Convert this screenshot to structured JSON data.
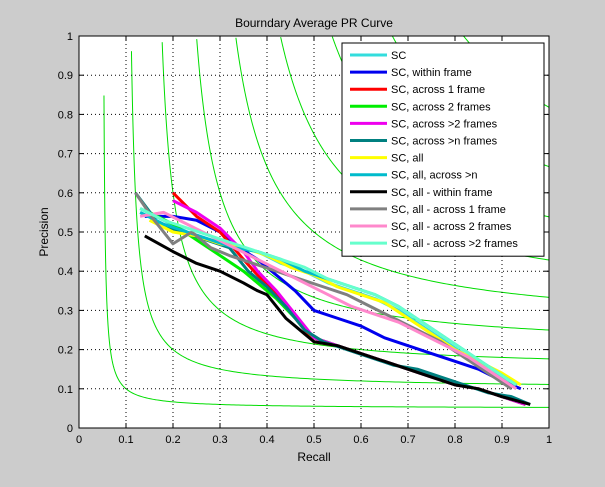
{
  "chart_data": {
    "type": "line",
    "title": "Bourndary Average PR Curve",
    "xlabel": "Recall",
    "ylabel": "Precision",
    "xlim": [
      0,
      1
    ],
    "ylim": [
      0,
      1
    ],
    "xticks": [
      "0",
      "0.1",
      "0.2",
      "0.3",
      "0.4",
      "0.5",
      "0.6",
      "0.7",
      "0.8",
      "0.9",
      "1"
    ],
    "yticks": [
      "0",
      "0.1",
      "0.2",
      "0.3",
      "0.4",
      "0.5",
      "0.6",
      "0.7",
      "0.8",
      "0.9",
      "1"
    ],
    "grid": "dotted",
    "legend_position": "top-right",
    "f_measure_isolines": {
      "color": "#00dd00",
      "values": [
        0.1,
        0.2,
        0.3,
        0.4,
        0.5,
        0.6,
        0.7,
        0.8,
        0.9
      ]
    },
    "series": [
      {
        "name": "SC",
        "color": "#33dddd",
        "x": [
          0.13,
          0.18,
          0.23,
          0.28,
          0.33,
          0.38,
          0.43,
          0.48,
          0.53,
          0.58,
          0.63,
          0.68,
          0.73,
          0.78,
          0.83,
          0.88,
          0.93
        ],
        "y": [
          0.56,
          0.53,
          0.5,
          0.48,
          0.46,
          0.45,
          0.42,
          0.4,
          0.37,
          0.35,
          0.33,
          0.3,
          0.26,
          0.22,
          0.18,
          0.14,
          0.11
        ]
      },
      {
        "name": "SC, within frame",
        "color": "#0000ee",
        "x": [
          0.14,
          0.2,
          0.25,
          0.3,
          0.34,
          0.38,
          0.42,
          0.46,
          0.5,
          0.55,
          0.6,
          0.65,
          0.7,
          0.75,
          0.8,
          0.85,
          0.9,
          0.94
        ],
        "y": [
          0.54,
          0.54,
          0.53,
          0.5,
          0.46,
          0.43,
          0.39,
          0.35,
          0.3,
          0.28,
          0.26,
          0.23,
          0.21,
          0.19,
          0.17,
          0.15,
          0.12,
          0.1
        ]
      },
      {
        "name": "SC, across 1 frame",
        "color": "#ff0000",
        "x": [
          0.2,
          0.25,
          0.3,
          0.35,
          0.38,
          0.42,
          0.46,
          0.5,
          0.55,
          0.6,
          0.65,
          0.7,
          0.75,
          0.8,
          0.85,
          0.9,
          0.95
        ],
        "y": [
          0.6,
          0.54,
          0.5,
          0.43,
          0.39,
          0.34,
          0.28,
          0.22,
          0.21,
          0.19,
          0.17,
          0.15,
          0.13,
          0.11,
          0.1,
          0.08,
          0.06
        ]
      },
      {
        "name": "SC, across 2 frames",
        "color": "#00ee00",
        "x": [
          0.15,
          0.2,
          0.25,
          0.3,
          0.35,
          0.38,
          0.42,
          0.46,
          0.5,
          0.55,
          0.6,
          0.65,
          0.7,
          0.75,
          0.8,
          0.85,
          0.9,
          0.95
        ],
        "y": [
          0.55,
          0.52,
          0.48,
          0.44,
          0.4,
          0.37,
          0.33,
          0.28,
          0.23,
          0.21,
          0.19,
          0.17,
          0.15,
          0.13,
          0.11,
          0.1,
          0.08,
          0.06
        ]
      },
      {
        "name": "SC, across >2 frames",
        "color": "#ee00ee",
        "x": [
          0.2,
          0.25,
          0.3,
          0.35,
          0.38,
          0.42,
          0.46,
          0.5,
          0.55,
          0.6,
          0.65,
          0.7,
          0.75,
          0.8,
          0.85,
          0.9,
          0.95
        ],
        "y": [
          0.58,
          0.55,
          0.51,
          0.45,
          0.4,
          0.35,
          0.29,
          0.23,
          0.21,
          0.19,
          0.17,
          0.15,
          0.13,
          0.11,
          0.1,
          0.08,
          0.06
        ]
      },
      {
        "name": "SC, across >n frames",
        "color": "#008080",
        "x": [
          0.12,
          0.17,
          0.22,
          0.27,
          0.32,
          0.36,
          0.4,
          0.44,
          0.48,
          0.52,
          0.57,
          0.62,
          0.67,
          0.72,
          0.77,
          0.82,
          0.87,
          0.92,
          0.96
        ],
        "y": [
          0.6,
          0.52,
          0.5,
          0.48,
          0.46,
          0.4,
          0.36,
          0.31,
          0.25,
          0.22,
          0.2,
          0.18,
          0.16,
          0.15,
          0.13,
          0.11,
          0.09,
          0.08,
          0.06
        ]
      },
      {
        "name": "SC, all",
        "color": "#ffff00",
        "x": [
          0.15,
          0.2,
          0.25,
          0.3,
          0.35,
          0.4,
          0.45,
          0.5,
          0.55,
          0.6,
          0.65,
          0.7,
          0.75,
          0.8,
          0.85,
          0.9,
          0.94
        ],
        "y": [
          0.53,
          0.5,
          0.49,
          0.47,
          0.46,
          0.44,
          0.41,
          0.39,
          0.36,
          0.34,
          0.32,
          0.28,
          0.24,
          0.2,
          0.17,
          0.14,
          0.11
        ]
      },
      {
        "name": "SC, all, across >n",
        "color": "#00bbcc",
        "x": [
          0.13,
          0.18,
          0.23,
          0.28,
          0.33,
          0.38,
          0.43,
          0.48,
          0.53,
          0.58,
          0.63,
          0.68,
          0.73,
          0.78,
          0.83,
          0.88,
          0.93
        ],
        "y": [
          0.55,
          0.52,
          0.5,
          0.48,
          0.46,
          0.45,
          0.43,
          0.4,
          0.38,
          0.36,
          0.34,
          0.31,
          0.27,
          0.23,
          0.19,
          0.15,
          0.11
        ]
      },
      {
        "name": "SC, all - within frame",
        "color": "#000000",
        "x": [
          0.14,
          0.2,
          0.25,
          0.3,
          0.35,
          0.38,
          0.4,
          0.42,
          0.44,
          0.46,
          0.48,
          0.5,
          0.55,
          0.6,
          0.65,
          0.7,
          0.75,
          0.8,
          0.85,
          0.9,
          0.96
        ],
        "y": [
          0.49,
          0.45,
          0.42,
          0.4,
          0.37,
          0.35,
          0.34,
          0.31,
          0.28,
          0.26,
          0.24,
          0.22,
          0.21,
          0.19,
          0.17,
          0.15,
          0.13,
          0.11,
          0.1,
          0.08,
          0.06
        ]
      },
      {
        "name": "SC, all - across 1 frame",
        "color": "#808080",
        "x": [
          0.12,
          0.16,
          0.2,
          0.24,
          0.28,
          0.32,
          0.37,
          0.42,
          0.47,
          0.52,
          0.57,
          0.62,
          0.67,
          0.72,
          0.77,
          0.82,
          0.87,
          0.92
        ],
        "y": [
          0.6,
          0.53,
          0.47,
          0.5,
          0.46,
          0.44,
          0.42,
          0.4,
          0.38,
          0.36,
          0.34,
          0.31,
          0.28,
          0.25,
          0.22,
          0.18,
          0.14,
          0.1
        ]
      },
      {
        "name": "SC, all - across 2 frames",
        "color": "#ff88cc",
        "x": [
          0.13,
          0.18,
          0.23,
          0.28,
          0.33,
          0.38,
          0.43,
          0.48,
          0.53,
          0.58,
          0.63,
          0.68,
          0.73,
          0.78,
          0.83,
          0.88,
          0.93
        ],
        "y": [
          0.54,
          0.55,
          0.52,
          0.49,
          0.46,
          0.43,
          0.4,
          0.37,
          0.34,
          0.31,
          0.29,
          0.27,
          0.24,
          0.21,
          0.18,
          0.14,
          0.1
        ]
      },
      {
        "name": "SC, all - across >2 frames",
        "color": "#66ffcc",
        "x": [
          0.13,
          0.18,
          0.23,
          0.28,
          0.33,
          0.38,
          0.43,
          0.48,
          0.53,
          0.58,
          0.63,
          0.68,
          0.73,
          0.78,
          0.83,
          0.88,
          0.93
        ],
        "y": [
          0.56,
          0.53,
          0.51,
          0.49,
          0.47,
          0.45,
          0.43,
          0.41,
          0.38,
          0.36,
          0.34,
          0.31,
          0.27,
          0.23,
          0.19,
          0.15,
          0.11
        ]
      }
    ]
  }
}
